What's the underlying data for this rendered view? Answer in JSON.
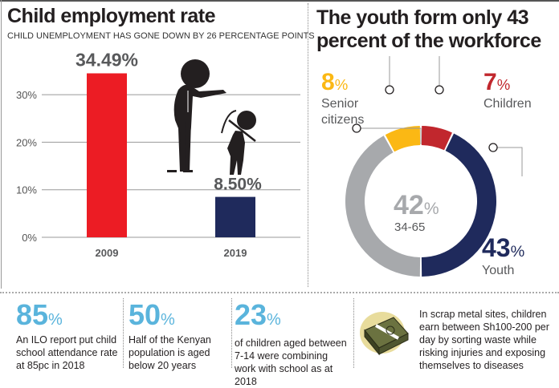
{
  "left": {
    "title": "Child employment rate",
    "subtitle": "CHILD UNEMPLOYMENT HAS GONE DOWN BY 26 PERCENTAGE POINTS"
  },
  "right": {
    "title": "The youth form only 43 percent of the workforce"
  },
  "chart_data": [
    {
      "type": "bar",
      "title": "Child employment rate",
      "categories": [
        "2009",
        "2019"
      ],
      "values": [
        34.49,
        8.5
      ],
      "data_labels": [
        "34.49%",
        "8.50%"
      ],
      "colors": [
        "#ec1c24",
        "#1f2a5c"
      ],
      "ylim": [
        0,
        30
      ],
      "yticks": [
        "0%",
        "10%",
        "20%",
        "30%"
      ],
      "grid": true
    },
    {
      "type": "pie",
      "variant": "donut",
      "slices": [
        {
          "name": "Children",
          "value": 7,
          "label": "7%",
          "color": "#c1272d"
        },
        {
          "name": "Youth",
          "value": 43,
          "label": "43%",
          "color": "#1f2a5c"
        },
        {
          "name": "34-65",
          "value": 42,
          "label": "42%",
          "color": "#a7a9ac"
        },
        {
          "name": "Senior citizens",
          "value": 8,
          "label": "8%",
          "color": "#fbb814"
        }
      ]
    }
  ],
  "stats": [
    {
      "value": "85",
      "unit": "%",
      "text": "An ILO report put child school attendance rate at 85pc in 2018"
    },
    {
      "value": "50",
      "unit": "%",
      "text": "Half of the Kenyan population is aged below 20 years"
    },
    {
      "value": "23",
      "unit": "%",
      "text": "of children aged between 7-14 were combining work with school as at 2018"
    }
  ],
  "money_note": "In scrap metal sites, children earn between Sh100-200 per day by sorting waste while risking injuries and exposing themselves to diseases",
  "icons": [
    "adult-pointing-silhouette",
    "child-with-pickaxe-silhouette",
    "money-stack-icon"
  ]
}
